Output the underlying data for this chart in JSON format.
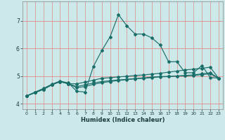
{
  "xlabel": "Humidex (Indice chaleur)",
  "xlim": [
    -0.5,
    23.5
  ],
  "ylim": [
    3.8,
    7.7
  ],
  "xticks": [
    0,
    1,
    2,
    3,
    4,
    5,
    6,
    7,
    8,
    9,
    10,
    11,
    12,
    13,
    14,
    15,
    16,
    17,
    18,
    19,
    20,
    21,
    22,
    23
  ],
  "yticks": [
    4,
    5,
    6,
    7
  ],
  "bg_color": "#cce8e8",
  "line_color": "#1a6e6a",
  "grid_color_h": "#e08888",
  "grid_color_v": "#c8a0a0",
  "lines": [
    {
      "x": [
        0,
        1,
        2,
        3,
        4,
        5,
        6,
        7,
        8,
        9,
        10,
        11,
        12,
        13,
        14,
        15,
        16,
        17,
        18,
        19,
        20,
        21,
        22,
        23
      ],
      "y": [
        4.28,
        4.42,
        4.55,
        4.7,
        4.82,
        4.75,
        4.45,
        4.42,
        5.35,
        5.92,
        6.42,
        7.22,
        6.82,
        6.52,
        6.52,
        6.38,
        6.12,
        5.52,
        5.52,
        5.12,
        5.12,
        5.38,
        4.95,
        4.92
      ]
    },
    {
      "x": [
        0,
        1,
        2,
        3,
        4,
        5,
        6,
        7,
        8,
        9,
        10,
        11,
        12,
        13,
        14,
        15,
        16,
        17,
        18,
        19,
        20,
        21,
        22,
        23
      ],
      "y": [
        4.28,
        4.4,
        4.52,
        4.68,
        4.8,
        4.72,
        4.72,
        4.78,
        4.85,
        4.92,
        4.94,
        4.97,
        4.99,
        5.02,
        5.04,
        5.07,
        5.1,
        5.14,
        5.18,
        5.22,
        5.25,
        5.28,
        5.32,
        4.92
      ]
    },
    {
      "x": [
        0,
        1,
        2,
        3,
        4,
        5,
        6,
        7,
        8,
        9,
        10,
        11,
        12,
        13,
        14,
        15,
        16,
        17,
        18,
        19,
        20,
        21,
        22,
        23
      ],
      "y": [
        4.28,
        4.4,
        4.52,
        4.68,
        4.8,
        4.72,
        4.62,
        4.68,
        4.75,
        4.8,
        4.83,
        4.86,
        4.88,
        4.91,
        4.93,
        4.96,
        4.98,
        4.99,
        5.0,
        5.01,
        5.02,
        5.05,
        5.08,
        4.92
      ]
    },
    {
      "x": [
        0,
        1,
        2,
        3,
        4,
        5,
        6,
        7,
        8,
        9,
        10,
        11,
        12,
        13,
        14,
        15,
        16,
        17,
        18,
        19,
        20,
        21,
        22,
        23
      ],
      "y": [
        4.28,
        4.4,
        4.52,
        4.68,
        4.8,
        4.72,
        4.58,
        4.62,
        4.7,
        4.76,
        4.8,
        4.84,
        4.87,
        4.9,
        4.92,
        4.94,
        4.97,
        4.98,
        5.0,
        5.02,
        5.04,
        5.08,
        5.12,
        4.92
      ]
    }
  ]
}
